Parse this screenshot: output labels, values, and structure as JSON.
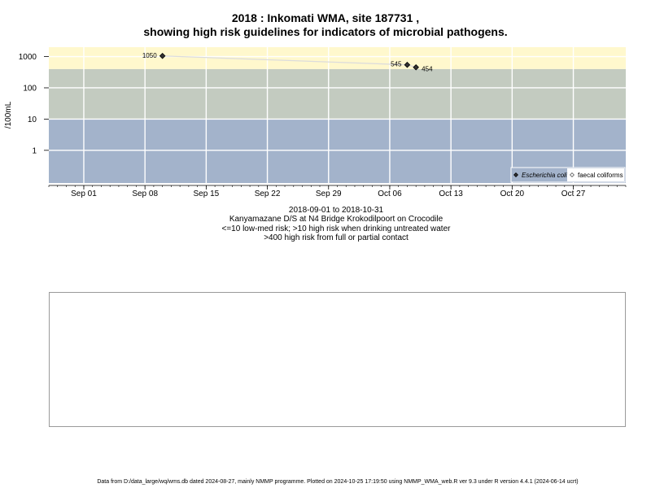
{
  "title": {
    "line1": "2018 : Inkomati WMA, site 187731 ,",
    "line2": "showing high risk guidelines for indicators of microbial pathogens."
  },
  "captions": {
    "date_range": "2018-09-01 to 2018-10-31",
    "site": "Kanyamazane D/S at N4 Bridge Krokodilpoort on Crocodile",
    "guideline1": "<=10 low-med risk; >10 high risk when drinking untreated water",
    "guideline2": ">400 high risk from full or partial contact"
  },
  "footer": "Data from D:/data_large/wq/wms.db dated 2024-08-27, mainly NMMP programme. Plotted on 2024-10-25 17:19:50 using NMMP_WMA_web.R ver 9.3 under R version 4.4.1 (2024-06-14 ucrt)",
  "colors": {
    "zone_low": "#a3b3cb",
    "zone_high": "#c3cbc0",
    "zone_contact": "#fff8cd",
    "grid": "#ffffff",
    "series_line": "#dcdcdc",
    "ecoli_marker": "#333333",
    "legend_bg": "#a3b3cb"
  },
  "chart_data": {
    "type": "scatter",
    "x_axis": {
      "type": "date",
      "range": [
        "2018-08-28",
        "2018-11-02"
      ],
      "ticks": [
        {
          "date": "2018-09-01",
          "label": "Sep 01"
        },
        {
          "date": "2018-09-08",
          "label": "Sep 08"
        },
        {
          "date": "2018-09-15",
          "label": "Sep 15"
        },
        {
          "date": "2018-09-22",
          "label": "Sep 22"
        },
        {
          "date": "2018-09-29",
          "label": "Sep 29"
        },
        {
          "date": "2018-10-06",
          "label": "Oct 06"
        },
        {
          "date": "2018-10-13",
          "label": "Oct 13"
        },
        {
          "date": "2018-10-20",
          "label": "Oct 20"
        },
        {
          "date": "2018-10-27",
          "label": "Oct 27"
        }
      ]
    },
    "y_axis": {
      "label": "/100mL",
      "scale": "log10",
      "range": [
        0.09,
        2000
      ],
      "ticks": [
        1,
        10,
        100,
        1000
      ]
    },
    "risk_zones": [
      {
        "name": "low-med risk",
        "from": 0.09,
        "to": 10
      },
      {
        "name": "high risk drinking",
        "from": 10,
        "to": 400
      },
      {
        "name": "high risk contact",
        "from": 400,
        "to": 2000
      }
    ],
    "series": [
      {
        "name": "Escherichia coli",
        "marker": "filled-diamond",
        "points": [
          {
            "x": "2018-09-10",
            "y": 1050,
            "label": "1050",
            "label_side": "left"
          },
          {
            "x": "2018-10-08",
            "y": 545,
            "label": "545",
            "label_side": "left"
          },
          {
            "x": "2018-10-09",
            "y": 454,
            "label": "454",
            "label_side": "right"
          }
        ]
      },
      {
        "name": "faecal coliforms",
        "marker": "open-diamond",
        "points": []
      }
    ],
    "legend_position": "bottom-right",
    "grid": true
  }
}
